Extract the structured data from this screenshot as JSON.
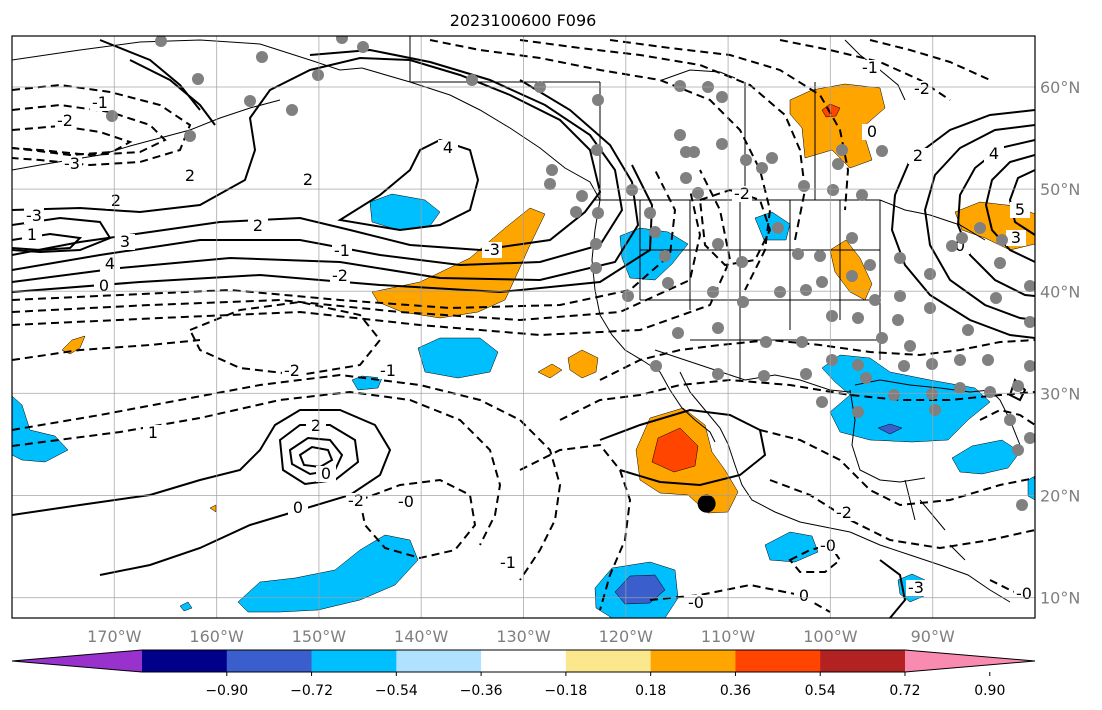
{
  "title": "2023100600 F096",
  "map": {
    "lon_range": [
      -180,
      -80
    ],
    "lat_range": [
      8,
      65
    ],
    "grid_lons": [
      -170,
      -160,
      -150,
      -140,
      -130,
      -120,
      -110,
      -100,
      -90
    ],
    "grid_lats": [
      10,
      20,
      30,
      40,
      50,
      60
    ],
    "lon_labels": [
      "170°W",
      "160°W",
      "150°W",
      "140°W",
      "130°W",
      "120°W",
      "110°W",
      "100°W",
      "90°W"
    ],
    "lat_labels": [
      "10°N",
      "20°N",
      "30°N",
      "40°N",
      "50°N",
      "60°N"
    ],
    "contour_labels": [
      "-3",
      "-1",
      "-2",
      "2",
      "4",
      "-3",
      "1",
      "2",
      "3",
      "4",
      "2",
      "2",
      "-2",
      "-1",
      "0",
      "-3",
      "-2",
      "-1",
      "1",
      "2",
      "0",
      "0",
      "-2",
      "-0",
      "-1",
      "-0",
      "0",
      "-2",
      "-3",
      "-2",
      "0",
      "2",
      "4",
      "5",
      "3",
      "-2",
      "-1",
      "0",
      "-0",
      "-0"
    ],
    "station_marker_color": "#808080",
    "highlight_point": {
      "lon": -112.1,
      "lat": 19.2,
      "color": "#000000"
    }
  },
  "colorbar": {
    "colors": [
      "#9932cc",
      "#00008b",
      "#3a5fcd",
      "#00bfff",
      "#b0e2ff",
      "#ffffff",
      "#fbe88c",
      "#ffa500",
      "#ff4500",
      "#b22222",
      "#f98ab0"
    ],
    "tick_labels": [
      "−0.90",
      "−0.72",
      "−0.54",
      "−0.36",
      "−0.18",
      "0.18",
      "0.36",
      "0.54",
      "0.72",
      "0.90"
    ]
  }
}
